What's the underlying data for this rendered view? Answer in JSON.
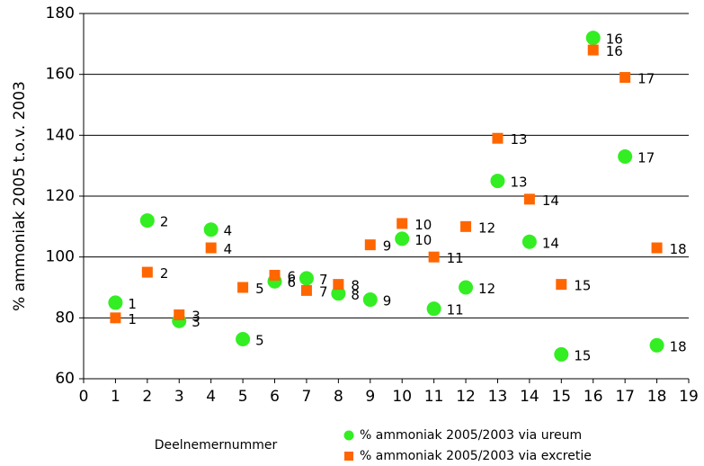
{
  "chart_data": {
    "type": "scatter",
    "x_label": "Deelnemernummer",
    "y_label": "% ammoniak 2005 t.o.v. 2003",
    "x": [
      1,
      2,
      3,
      4,
      5,
      6,
      7,
      8,
      9,
      10,
      11,
      12,
      13,
      14,
      15,
      16,
      17,
      18
    ],
    "series": [
      {
        "name": "% ammoniak 2005/2003 via ureum",
        "color": "#33ee22",
        "marker": "circle",
        "values": [
          85,
          112,
          79,
          109,
          73,
          92,
          93,
          88,
          86,
          106,
          83,
          90,
          125,
          105,
          68,
          172,
          133,
          71
        ]
      },
      {
        "name": "% ammoniak 2005/2003 via excretie",
        "color": "#ff6600",
        "marker": "square",
        "values": [
          80,
          95,
          81,
          103,
          90,
          94,
          89,
          91,
          104,
          111,
          100,
          110,
          139,
          119,
          91,
          168,
          159,
          103
        ]
      }
    ],
    "xlim": [
      0,
      19
    ],
    "xticks": [
      0,
      1,
      2,
      3,
      4,
      5,
      6,
      7,
      8,
      9,
      10,
      11,
      12,
      13,
      14,
      15,
      16,
      17,
      18,
      19
    ],
    "ylim": [
      60,
      180
    ],
    "yticks": [
      60,
      80,
      100,
      120,
      140,
      160,
      180
    ],
    "grid": true
  }
}
